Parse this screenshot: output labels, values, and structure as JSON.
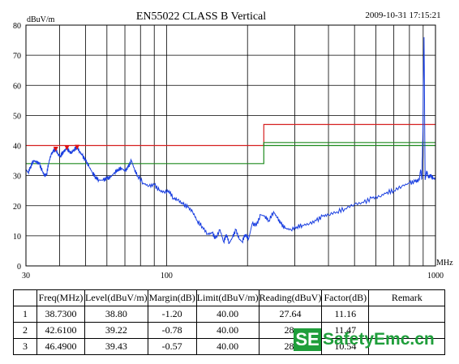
{
  "chart_data": {
    "type": "line",
    "title": "EN55022 CLASS B  Vertical",
    "timestamp": "2009-10-31  17:15:21",
    "ylabel": "dBuV/m",
    "xlabel": "MHz",
    "x_scale": "log",
    "xlim": [
      30,
      1000
    ],
    "ylim": [
      0,
      80
    ],
    "yticks": [
      "0",
      "10",
      "20",
      "30",
      "40",
      "50",
      "60",
      "70",
      "80"
    ],
    "xtick_labels": [
      {
        "value": 30,
        "label": "30"
      },
      {
        "value": 100,
        "label": "100"
      },
      {
        "value": 1000,
        "label": "1000"
      }
    ],
    "grid": true,
    "limit_line": {
      "color": "#d62020",
      "points": [
        [
          30,
          40
        ],
        [
          230,
          40
        ],
        [
          230,
          47
        ],
        [
          1000,
          47
        ]
      ]
    },
    "margin_line": {
      "color": "#1e8a1e",
      "points": [
        [
          30,
          34
        ],
        [
          230,
          34
        ],
        [
          230,
          41
        ],
        [
          1000,
          41
        ]
      ]
    },
    "margin_line_2": {
      "color": "#1e8a1e",
      "points": [
        [
          230,
          40
        ],
        [
          1000,
          40
        ]
      ]
    },
    "series": [
      {
        "color": "#1a3fe0",
        "points": [
          [
            30,
            32
          ],
          [
            30.6,
            31
          ],
          [
            31.2,
            33
          ],
          [
            32,
            35
          ],
          [
            32.8,
            34.5
          ],
          [
            33.6,
            34
          ],
          [
            34.5,
            31.5
          ],
          [
            35.2,
            30
          ],
          [
            35.8,
            30.5
          ],
          [
            36.4,
            34
          ],
          [
            37.2,
            37
          ],
          [
            38,
            38.2
          ],
          [
            38.73,
            38.8
          ],
          [
            39.5,
            37
          ],
          [
            40.3,
            36.5
          ],
          [
            41.2,
            37.8
          ],
          [
            42,
            38.5
          ],
          [
            42.61,
            39.22
          ],
          [
            43.4,
            38
          ],
          [
            44.2,
            37.5
          ],
          [
            45.2,
            38.6
          ],
          [
            46.49,
            39.43
          ],
          [
            47.5,
            38
          ],
          [
            48.5,
            36.8
          ],
          [
            50,
            35
          ],
          [
            51.5,
            33
          ],
          [
            53,
            31
          ],
          [
            54.5,
            29.5
          ],
          [
            56,
            28.5
          ],
          [
            58,
            28.5
          ],
          [
            60,
            29
          ],
          [
            62,
            29.5
          ],
          [
            64,
            31
          ],
          [
            66,
            32
          ],
          [
            68,
            32.5
          ],
          [
            70,
            31.5
          ],
          [
            72,
            32.8
          ],
          [
            74,
            35
          ],
          [
            76,
            32
          ],
          [
            78,
            30
          ],
          [
            82,
            27.5
          ],
          [
            86,
            26.5
          ],
          [
            90,
            27
          ],
          [
            94,
            25
          ],
          [
            98,
            24.5
          ],
          [
            102,
            25
          ],
          [
            106,
            22.5
          ],
          [
            110,
            22
          ],
          [
            115,
            20.5
          ],
          [
            120,
            19.5
          ],
          [
            125,
            18
          ],
          [
            130,
            15
          ],
          [
            136,
            13
          ],
          [
            142,
            10.5
          ],
          [
            148,
            11
          ],
          [
            152,
            9
          ],
          [
            158,
            12
          ],
          [
            163,
            8
          ],
          [
            167,
            10.5
          ],
          [
            171,
            7.5
          ],
          [
            176,
            9.5
          ],
          [
            181,
            12
          ],
          [
            186,
            9
          ],
          [
            191,
            8
          ],
          [
            196,
            10.5
          ],
          [
            202,
            9
          ],
          [
            208,
            14
          ],
          [
            216,
            13.5
          ],
          [
            224,
            17
          ],
          [
            232,
            16.5
          ],
          [
            240,
            15
          ],
          [
            250,
            18
          ],
          [
            258,
            16
          ],
          [
            266,
            14
          ],
          [
            276,
            12.5
          ],
          [
            290,
            12
          ],
          [
            305,
            13
          ],
          [
            320,
            13.5
          ],
          [
            340,
            14
          ],
          [
            360,
            15
          ],
          [
            380,
            16.5
          ],
          [
            400,
            17
          ],
          [
            430,
            18
          ],
          [
            460,
            19
          ],
          [
            500,
            20.5
          ],
          [
            540,
            21
          ],
          [
            580,
            22.5
          ],
          [
            620,
            23
          ],
          [
            660,
            24.5
          ],
          [
            700,
            25
          ],
          [
            750,
            26.5
          ],
          [
            800,
            27.5
          ],
          [
            840,
            28
          ],
          [
            870,
            28.5
          ],
          [
            880,
            32
          ],
          [
            890,
            29
          ],
          [
            898,
            45
          ],
          [
            903,
            67
          ],
          [
            907,
            76
          ],
          [
            911,
            50
          ],
          [
            915,
            29
          ],
          [
            920,
            30
          ],
          [
            930,
            31.5
          ],
          [
            940,
            29.5
          ],
          [
            960,
            30
          ],
          [
            980,
            29
          ],
          [
            1000,
            29
          ]
        ]
      }
    ],
    "markers": [
      {
        "color": "#e01010",
        "x": 38.73,
        "y": 38.8
      },
      {
        "color": "#e01010",
        "x": 42.61,
        "y": 39.22
      },
      {
        "color": "#e01010",
        "x": 46.49,
        "y": 39.43
      }
    ]
  },
  "table": {
    "headers": [
      "Freq(MHz)",
      "Level(dBuV/m)",
      "Margin(dB)",
      "Limit(dBuV/m)",
      "Reading(dBuV)",
      "Factor(dB)",
      "Remark"
    ],
    "rows": [
      {
        "no": "1",
        "cells": [
          "38.7300",
          "38.80",
          "-1.20",
          "40.00",
          "27.64",
          "11.16",
          ""
        ]
      },
      {
        "no": "2",
        "cells": [
          "42.6100",
          "39.22",
          "-0.78",
          "40.00",
          "28.",
          "11.47",
          ""
        ]
      },
      {
        "no": "3",
        "cells": [
          "46.4900",
          "39.43",
          "-0.57",
          "40.00",
          "28.",
          "10.54",
          ""
        ]
      }
    ]
  },
  "watermark": {
    "box": "SE",
    "text": "SafetyEmc.cn"
  }
}
